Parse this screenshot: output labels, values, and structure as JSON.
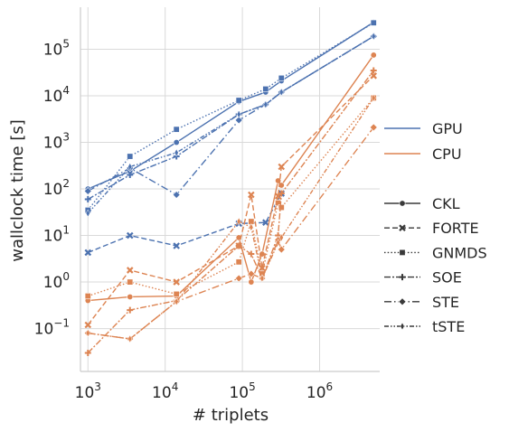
{
  "chart_data": {
    "type": "line",
    "title": "",
    "xlabel": "# triplets",
    "ylabel": "wallclock time [s]",
    "x_scale": "log",
    "y_scale": "log",
    "xlim": [
      800,
      6000000
    ],
    "ylim": [
      0.012,
      800000
    ],
    "x_ticks": [
      1000,
      10000,
      100000,
      1000000
    ],
    "x_tick_labels": [
      "10^3",
      "10^4",
      "10^5",
      "10^6"
    ],
    "y_ticks": [
      0.1,
      1,
      10,
      100,
      1000,
      10000,
      100000
    ],
    "y_tick_labels": [
      {
        "base": "10",
        "exp": "−1",
        "value": 0.1
      },
      {
        "base": "10",
        "exp": "0",
        "value": 1
      },
      {
        "base": "10",
        "exp": "1",
        "value": 10
      },
      {
        "base": "10",
        "exp": "2",
        "value": 100
      },
      {
        "base": "10",
        "exp": "3",
        "value": 1000
      },
      {
        "base": "10",
        "exp": "4",
        "value": 10000
      },
      {
        "base": "10",
        "exp": "5",
        "value": 100000
      }
    ],
    "grid": true,
    "legend_placement": "right",
    "hue_legend": [
      {
        "name": "GPU",
        "color": "#4c72b0"
      },
      {
        "name": "CPU",
        "color": "#dd8452"
      }
    ],
    "style_legend": [
      {
        "name": "CKL",
        "marker": "circle",
        "dash": "solid"
      },
      {
        "name": "FORTE",
        "marker": "x",
        "dash": "dashed"
      },
      {
        "name": "GNMDS",
        "marker": "square",
        "dash": "dotted"
      },
      {
        "name": "SOE",
        "marker": "plus",
        "dash": "dashdot-long"
      },
      {
        "name": "STE",
        "marker": "diamond",
        "dash": "dashdot"
      },
      {
        "name": "tSTE",
        "marker": "thin-diamond",
        "dash": "dashdotdot"
      }
    ],
    "series": [
      {
        "hue": "GPU",
        "style": "CKL",
        "x": [
          1000,
          3500,
          14000,
          90000,
          200000,
          320000,
          5000000
        ],
        "y": [
          100,
          240,
          1000,
          7500,
          12000,
          21000,
          380000
        ]
      },
      {
        "hue": "GPU",
        "style": "FORTE",
        "x": [
          1000,
          3500,
          14000,
          90000,
          200000,
          320000
        ],
        "y": [
          4.3,
          10,
          6,
          18,
          19,
          80
        ]
      },
      {
        "hue": "GPU",
        "style": "GNMDS",
        "x": [
          1000,
          3500,
          14000,
          90000,
          200000,
          320000,
          5000000
        ],
        "y": [
          35,
          500,
          1900,
          8000,
          14000,
          24000,
          370000
        ]
      },
      {
        "hue": "GPU",
        "style": "SOE",
        "x": [
          1000,
          3500,
          14000,
          90000,
          200000,
          320000,
          5000000
        ],
        "y": [
          60,
          200,
          500,
          4000,
          6500,
          12000,
          190000
        ]
      },
      {
        "hue": "GPU",
        "style": "STE",
        "x": [
          1000,
          3500,
          14000,
          90000,
          200000,
          320000,
          5000000
        ],
        "y": [
          90,
          280,
          75,
          3000,
          6500,
          12000,
          190000
        ]
      },
      {
        "hue": "GPU",
        "style": "tSTE",
        "x": [
          1000,
          3500,
          14000,
          90000,
          200000,
          320000,
          5000000
        ],
        "y": [
          30,
          300,
          600,
          4000,
          6500,
          12000,
          190000
        ]
      },
      {
        "hue": "CPU",
        "style": "CKL",
        "x": [
          1000,
          3500,
          14000,
          90000,
          130000,
          180000,
          290000,
          320000,
          5000000
        ],
        "y": [
          0.4,
          0.48,
          0.5,
          9,
          1.0,
          4,
          150,
          120,
          75000
        ]
      },
      {
        "hue": "CPU",
        "style": "FORTE",
        "x": [
          1000,
          3500,
          14000,
          90000,
          130000,
          180000,
          290000,
          320000,
          5000000
        ],
        "y": [
          0.12,
          1.8,
          1.0,
          6,
          75,
          2.0,
          70,
          300,
          27000
        ]
      },
      {
        "hue": "CPU",
        "style": "GNMDS",
        "x": [
          1000,
          3500,
          14000,
          90000,
          130000,
          180000,
          290000,
          320000,
          5000000
        ],
        "y": [
          0.5,
          1.0,
          0.55,
          2.7,
          20,
          1.5,
          50,
          40,
          9000
        ]
      },
      {
        "hue": "CPU",
        "style": "SOE",
        "x": [
          1000,
          3500,
          14000,
          90000,
          130000,
          180000,
          290000,
          320000,
          5000000
        ],
        "y": [
          0.03,
          0.25,
          0.4,
          6,
          4,
          1.2,
          10,
          80,
          35000
        ]
      },
      {
        "hue": "CPU",
        "style": "STE",
        "x": [
          1000,
          3500,
          14000,
          90000,
          130000,
          180000,
          290000,
          320000,
          5000000
        ],
        "y": [
          0.08,
          0.06,
          0.38,
          1.2,
          1.5,
          1.2,
          8,
          5,
          2100
        ]
      },
      {
        "hue": "CPU",
        "style": "tSTE",
        "x": [
          1000,
          3500,
          14000,
          90000,
          130000,
          180000,
          290000,
          320000,
          5000000
        ],
        "y": [
          0.08,
          0.06,
          0.38,
          20,
          15,
          1.2,
          7,
          9,
          9000
        ]
      }
    ]
  }
}
